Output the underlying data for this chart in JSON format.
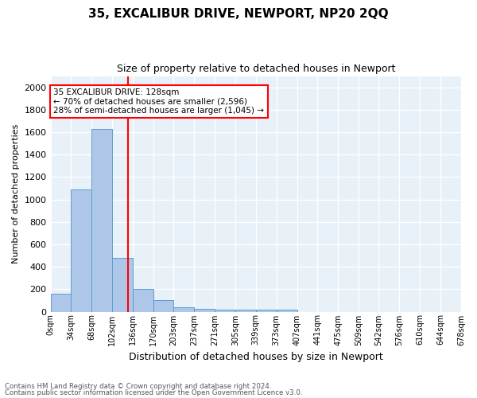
{
  "title": "35, EXCALIBUR DRIVE, NEWPORT, NP20 2QQ",
  "subtitle": "Size of property relative to detached houses in Newport",
  "xlabel": "Distribution of detached houses by size in Newport",
  "ylabel": "Number of detached properties",
  "bar_color": "#aec6e8",
  "bar_edge_color": "#5a9fd4",
  "background_color": "#e8f0f8",
  "grid_color": "white",
  "red_line_x": 128,
  "annotation_title": "35 EXCALIBUR DRIVE: 128sqm",
  "annotation_line1": "← 70% of detached houses are smaller (2,596)",
  "annotation_line2": "28% of semi-detached houses are larger (1,045) →",
  "footer1": "Contains HM Land Registry data © Crown copyright and database right 2024.",
  "footer2": "Contains public sector information licensed under the Open Government Licence v3.0.",
  "bin_edges": [
    0,
    34,
    68,
    102,
    136,
    170,
    203,
    237,
    271,
    305,
    339,
    373,
    407,
    441,
    475,
    509,
    542,
    576,
    610,
    644,
    678
  ],
  "bin_labels": [
    "0sqm",
    "34sqm",
    "68sqm",
    "102sqm",
    "136sqm",
    "170sqm",
    "203sqm",
    "237sqm",
    "271sqm",
    "305sqm",
    "339sqm",
    "373sqm",
    "407sqm",
    "441sqm",
    "475sqm",
    "509sqm",
    "542sqm",
    "576sqm",
    "610sqm",
    "644sqm",
    "678sqm"
  ],
  "bar_heights": [
    160,
    1090,
    1630,
    480,
    200,
    100,
    40,
    25,
    15,
    15,
    15,
    20,
    0,
    0,
    0,
    0,
    0,
    0,
    0,
    0
  ],
  "ylim": [
    0,
    2100
  ],
  "yticks": [
    0,
    200,
    400,
    600,
    800,
    1000,
    1200,
    1400,
    1600,
    1800,
    2000
  ]
}
